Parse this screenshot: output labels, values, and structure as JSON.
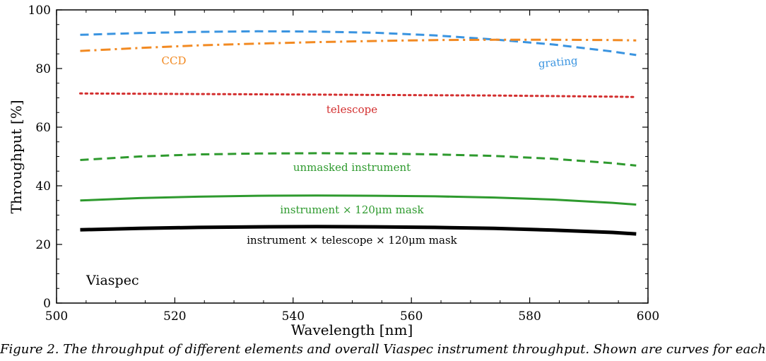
{
  "chart_data": {
    "type": "line",
    "xlabel": "Wavelength [nm]",
    "ylabel": "Throughput [%]",
    "xlim": [
      500,
      600
    ],
    "ylim": [
      0,
      100
    ],
    "xticks": [
      500,
      520,
      540,
      560,
      580,
      600
    ],
    "yticks": [
      0,
      20,
      40,
      60,
      80,
      100
    ],
    "grid": false,
    "panel_label": "Viaspec",
    "x": [
      504,
      514,
      524,
      534,
      544,
      554,
      564,
      574,
      584,
      594,
      598
    ],
    "series": [
      {
        "name": "grating",
        "color": "#3a94e0",
        "style": "dashed",
        "width": 3,
        "values": [
          91.5,
          92.1,
          92.5,
          92.7,
          92.6,
          92.2,
          91.3,
          89.9,
          88.2,
          85.8,
          84.6
        ]
      },
      {
        "name": "CCD",
        "color": "#f28a22",
        "style": "dashdot",
        "width": 3,
        "values": [
          86.0,
          87.0,
          87.9,
          88.5,
          89.0,
          89.4,
          89.7,
          89.8,
          89.8,
          89.7,
          89.6
        ]
      },
      {
        "name": "telescope",
        "color": "#d32f2f",
        "style": "dotted",
        "width": 3,
        "values": [
          71.5,
          71.4,
          71.3,
          71.2,
          71.1,
          71.0,
          70.9,
          70.8,
          70.6,
          70.4,
          70.3
        ]
      },
      {
        "name": "unmasked instrument",
        "color": "#2e9a2e",
        "style": "dashed",
        "width": 3,
        "values": [
          48.8,
          50.0,
          50.7,
          51.0,
          51.1,
          51.0,
          50.7,
          50.2,
          49.2,
          47.7,
          46.9
        ]
      },
      {
        "name": "instrument × 120μm mask",
        "color": "#2e9a2e",
        "style": "solid",
        "width": 3,
        "values": [
          35.0,
          35.8,
          36.3,
          36.6,
          36.7,
          36.6,
          36.4,
          36.0,
          35.3,
          34.2,
          33.6
        ]
      },
      {
        "name": "instrument × telescope × 120μm mask",
        "color": "#000000",
        "style": "solid",
        "width": 5,
        "values": [
          25.0,
          25.5,
          25.8,
          26.0,
          26.1,
          26.0,
          25.8,
          25.5,
          24.9,
          24.1,
          23.6
        ]
      }
    ],
    "series_label_text": [
      "grating",
      "CCD",
      "telescope",
      "unmasked instrument",
      "instrument × 120μm mask",
      "instrument × telescope × 120μm mask"
    ]
  },
  "caption": "Figure 2. The throughput of different elements and overall Viaspec instrument throughput. Shown are curves for each"
}
